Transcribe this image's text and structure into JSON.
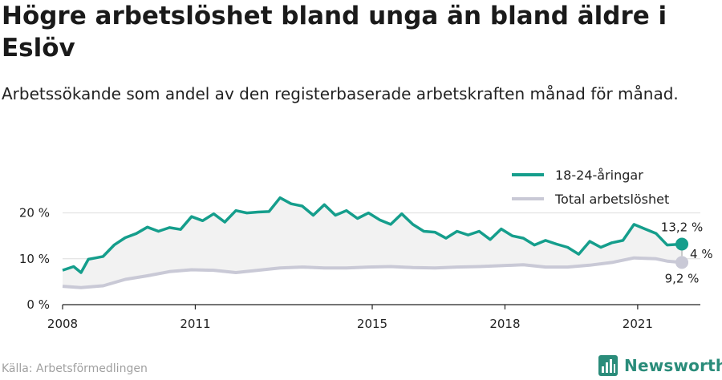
{
  "header": {
    "title": "Högre arbetslöshet bland unga än bland äldre i Eslöv",
    "subtitle": "Arbetssökande som andel av den registerbaserade arbetskraften månad för månad."
  },
  "footer": {
    "source": "Källa: Arbetsförmedlingen",
    "brand": "Newsworthy",
    "brand_icon": "newsworthy-logo-icon"
  },
  "colors": {
    "youth": "#159e8c",
    "total": "#c9c9d6",
    "fill": "#f2f2f2",
    "grid": "#dddddd",
    "brand": "#2a8c7a"
  },
  "chart_data": {
    "type": "line",
    "x_ticks": [
      "2008",
      "2011",
      "2015",
      "2018",
      "2021"
    ],
    "y_ticks": [
      "0 %",
      "10 %",
      "20 %"
    ],
    "ylim": [
      0,
      25
    ],
    "xlim": [
      "2008-01",
      "2022-06"
    ],
    "grid": "horizontal",
    "legend_position": "top-right",
    "series": [
      {
        "name": "18-24-åringar",
        "end_label": "13,2 %",
        "points": [
          [
            "2008-01",
            7.5
          ],
          [
            "2008-04",
            8.3
          ],
          [
            "2008-06",
            7.0
          ],
          [
            "2008-08",
            9.9
          ],
          [
            "2008-10",
            10.2
          ],
          [
            "2008-12",
            10.5
          ],
          [
            "2009-03",
            13.0
          ],
          [
            "2009-06",
            14.6
          ],
          [
            "2009-09",
            15.5
          ],
          [
            "2009-12",
            16.9
          ],
          [
            "2010-03",
            16.0
          ],
          [
            "2010-06",
            16.8
          ],
          [
            "2010-09",
            16.4
          ],
          [
            "2010-12",
            19.2
          ],
          [
            "2011-03",
            18.3
          ],
          [
            "2011-06",
            19.8
          ],
          [
            "2011-09",
            18.0
          ],
          [
            "2011-12",
            20.5
          ],
          [
            "2012-03",
            20.0
          ],
          [
            "2012-06",
            20.2
          ],
          [
            "2012-09",
            20.3
          ],
          [
            "2012-12",
            23.3
          ],
          [
            "2013-03",
            22.0
          ],
          [
            "2013-06",
            21.5
          ],
          [
            "2013-09",
            19.5
          ],
          [
            "2013-12",
            21.8
          ],
          [
            "2014-03",
            19.5
          ],
          [
            "2014-06",
            20.5
          ],
          [
            "2014-09",
            18.8
          ],
          [
            "2014-12",
            20.0
          ],
          [
            "2015-03",
            18.5
          ],
          [
            "2015-06",
            17.5
          ],
          [
            "2015-09",
            19.8
          ],
          [
            "2015-12",
            17.5
          ],
          [
            "2016-03",
            16.0
          ],
          [
            "2016-06",
            15.8
          ],
          [
            "2016-09",
            14.5
          ],
          [
            "2016-12",
            16.0
          ],
          [
            "2017-03",
            15.2
          ],
          [
            "2017-06",
            16.0
          ],
          [
            "2017-09",
            14.2
          ],
          [
            "2017-12",
            16.5
          ],
          [
            "2018-03",
            15.0
          ],
          [
            "2018-06",
            14.5
          ],
          [
            "2018-09",
            13.0
          ],
          [
            "2018-12",
            14.0
          ],
          [
            "2019-03",
            13.2
          ],
          [
            "2019-06",
            12.5
          ],
          [
            "2019-09",
            11.0
          ],
          [
            "2019-12",
            13.8
          ],
          [
            "2020-03",
            12.5
          ],
          [
            "2020-06",
            13.5
          ],
          [
            "2020-09",
            14.0
          ],
          [
            "2020-12",
            17.5
          ],
          [
            "2021-03",
            16.5
          ],
          [
            "2021-06",
            15.5
          ],
          [
            "2021-09",
            13.0
          ],
          [
            "2022-01",
            13.2
          ]
        ]
      },
      {
        "name": "Total arbetslöshet",
        "end_label": "9,2 %",
        "points": [
          [
            "2008-01",
            4.0
          ],
          [
            "2008-06",
            3.7
          ],
          [
            "2008-12",
            4.1
          ],
          [
            "2009-06",
            5.5
          ],
          [
            "2009-12",
            6.3
          ],
          [
            "2010-06",
            7.2
          ],
          [
            "2010-12",
            7.6
          ],
          [
            "2011-06",
            7.5
          ],
          [
            "2011-12",
            7.0
          ],
          [
            "2012-06",
            7.5
          ],
          [
            "2012-12",
            8.0
          ],
          [
            "2013-06",
            8.2
          ],
          [
            "2013-12",
            8.0
          ],
          [
            "2014-06",
            8.0
          ],
          [
            "2014-12",
            8.2
          ],
          [
            "2015-06",
            8.3
          ],
          [
            "2015-12",
            8.1
          ],
          [
            "2016-06",
            8.0
          ],
          [
            "2016-12",
            8.2
          ],
          [
            "2017-06",
            8.3
          ],
          [
            "2017-12",
            8.5
          ],
          [
            "2018-06",
            8.7
          ],
          [
            "2018-12",
            8.2
          ],
          [
            "2019-06",
            8.2
          ],
          [
            "2019-12",
            8.6
          ],
          [
            "2020-06",
            9.2
          ],
          [
            "2020-12",
            10.2
          ],
          [
            "2021-06",
            10.0
          ],
          [
            "2021-09",
            9.5
          ],
          [
            "2022-01",
            9.2
          ]
        ]
      }
    ],
    "gap_label": "4 %"
  }
}
